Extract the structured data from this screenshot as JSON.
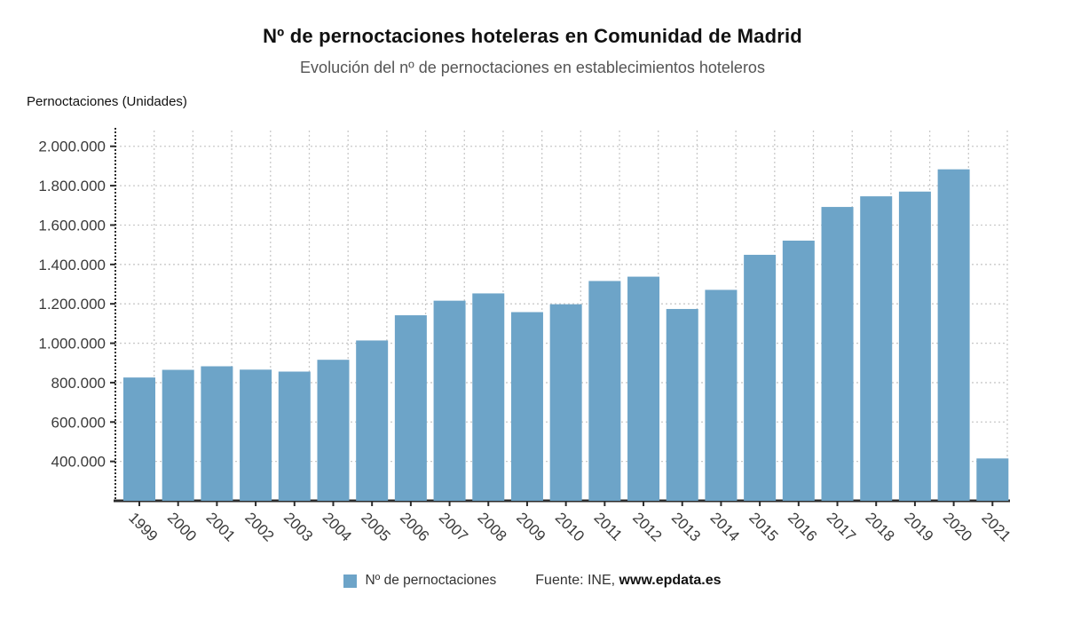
{
  "header": {
    "title": "Nº de pernoctaciones hoteleras en Comunidad de Madrid",
    "subtitle": "Evolución del nº de pernoctaciones en establecimientos hoteleros"
  },
  "y_axis_title": "Pernoctaciones (Unidades)",
  "legend": {
    "series_label": "Nº de pernoctaciones",
    "source_prefix": "Fuente: INE, ",
    "source_site": "www.epdata.es"
  },
  "colors": {
    "bar": "#6DA4C8",
    "grid": "#C9C9C9",
    "axis": "#2B2B2B",
    "tick_text": "#3A3A3A"
  },
  "chart_data": {
    "type": "bar",
    "title": "Nº de pernoctaciones hoteleras en Comunidad de Madrid",
    "subtitle": "Evolución del nº de pernoctaciones en establecimientos hoteleros",
    "xlabel": "",
    "ylabel": "Pernoctaciones (Unidades)",
    "legend_entries": [
      "Nº de pernoctaciones"
    ],
    "legend_position": "bottom",
    "source": "Fuente: INE, www.epdata.es",
    "grid": true,
    "bar_color": "#6DA4C8",
    "ylim": [
      200000,
      2080000
    ],
    "yticks": [
      400000,
      600000,
      800000,
      1000000,
      1200000,
      1400000,
      1600000,
      1800000,
      2000000
    ],
    "categories": [
      "1999",
      "2000",
      "2001",
      "2002",
      "2003",
      "2004",
      "2005",
      "2006",
      "2007",
      "2008",
      "2009",
      "2010",
      "2011",
      "2012",
      "2013",
      "2014",
      "2015",
      "2016",
      "2017",
      "2018",
      "2019",
      "2020",
      "2021"
    ],
    "values": [
      826000,
      865000,
      883000,
      866000,
      856000,
      916000,
      1014000,
      1142000,
      1216000,
      1253000,
      1158000,
      1198000,
      1316000,
      1338000,
      1174000,
      1271000,
      1449000,
      1521000,
      1692000,
      1746000,
      1770000,
      1883000,
      415000
    ]
  }
}
